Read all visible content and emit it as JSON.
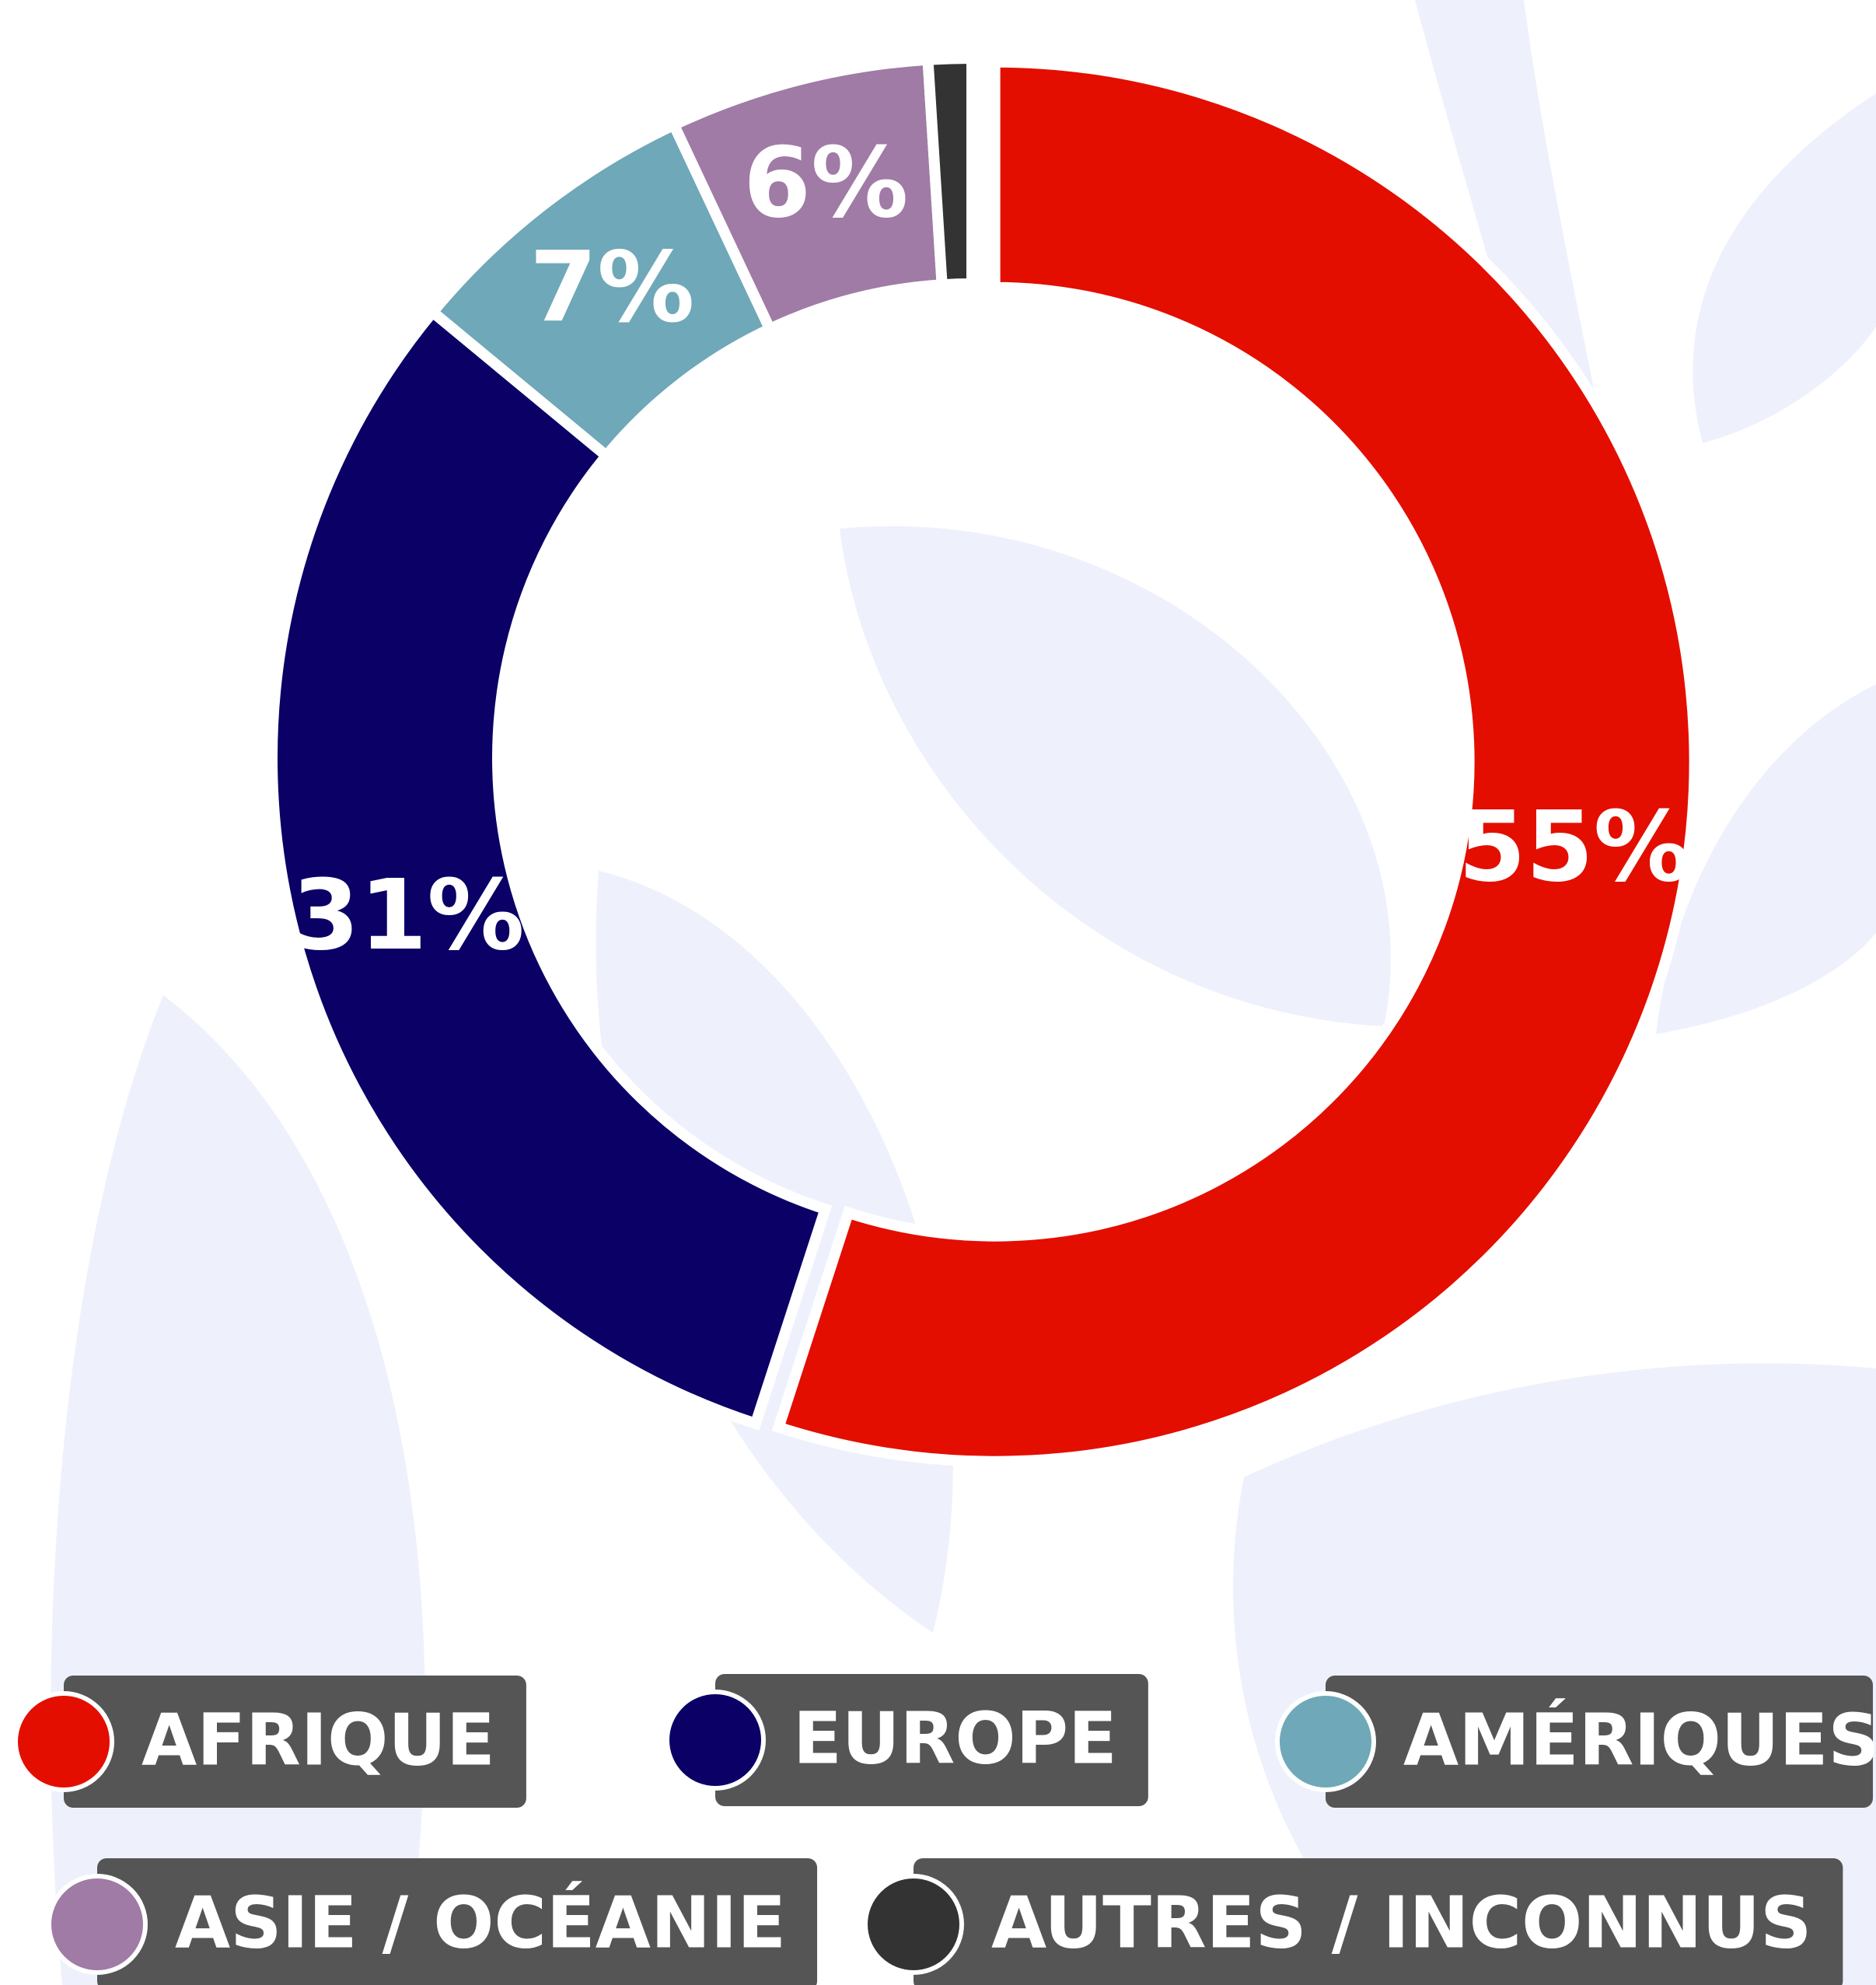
{
  "chart_data": {
    "type": "donut",
    "categories": [
      "AFRIQUE",
      "EUROPE",
      "AMÉRIQUES",
      "ASIE / OCÉANIE",
      "AUTRES / INCONNUS"
    ],
    "values": [
      55,
      31,
      7,
      6,
      1
    ],
    "value_labels": [
      "55%",
      "31%",
      "7%",
      "6%",
      null
    ],
    "colors": [
      "#e30e00",
      "#0a0066",
      "#6fa8b8",
      "#a07ba6",
      "#333333"
    ]
  }
}
